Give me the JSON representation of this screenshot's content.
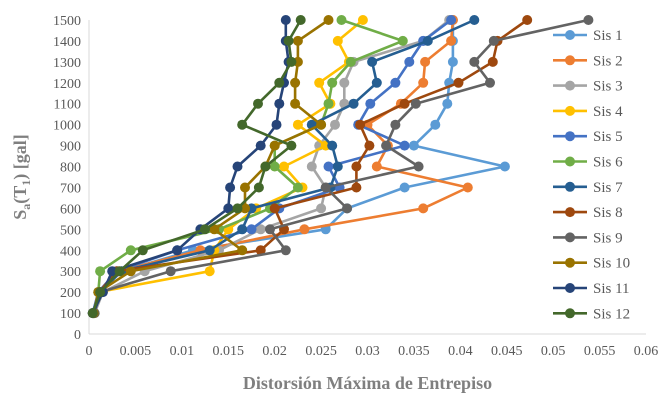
{
  "chart_data": {
    "type": "line",
    "xlabel": "Distorsión Máxima de Entrepiso",
    "ylabel_main": "S",
    "ylabel_sub1": "a",
    "ylabel_paren_open": "(T",
    "ylabel_sub2": "1",
    "ylabel_rest": ") [gal]",
    "xlim": [
      0,
      0.06
    ],
    "ylim": [
      0,
      1500
    ],
    "xticks": [
      "0",
      "0.005",
      "0.01",
      "0.015",
      "0.02",
      "0.025",
      "0.03",
      "0.035",
      "0.04",
      "0.045",
      "0.05",
      "0.055",
      "0.06"
    ],
    "yticks": [
      "0",
      "100",
      "200",
      "300",
      "400",
      "500",
      "600",
      "700",
      "800",
      "900",
      "1000",
      "1100",
      "1200",
      "1300",
      "1400",
      "1500"
    ],
    "legend_position": "right",
    "grid": false,
    "y": [
      100,
      200,
      300,
      400,
      500,
      600,
      700,
      800,
      900,
      1000,
      1100,
      1200,
      1300,
      1400,
      1500
    ],
    "series": [
      {
        "name": "Sis 1",
        "color": "#5b9bd5",
        "x": [
          0.0005,
          0.0012,
          0.0035,
          0.0112,
          0.0255,
          0.0278,
          0.034,
          0.0448,
          0.035,
          0.0373,
          0.0386,
          0.0388,
          0.0392,
          0.0392,
          0.0392
        ]
      },
      {
        "name": "Sis 2",
        "color": "#ed7d31",
        "x": [
          0.0004,
          0.0011,
          0.0032,
          0.012,
          0.0232,
          0.036,
          0.0408,
          0.031,
          0.0322,
          0.03,
          0.0336,
          0.036,
          0.0362,
          0.039,
          0.0392
        ]
      },
      {
        "name": "Sis 3",
        "color": "#a5a5a5",
        "x": [
          0.0006,
          0.0015,
          0.006,
          0.014,
          0.0185,
          0.025,
          0.0255,
          0.024,
          0.0248,
          0.0265,
          0.0275,
          0.0275,
          0.0285,
          0.036,
          0.0388
        ]
      },
      {
        "name": "Sis 4",
        "color": "#ffc000",
        "x": [
          0.0005,
          0.001,
          0.013,
          0.0135,
          0.015,
          0.018,
          0.023,
          0.021,
          0.0255,
          0.0225,
          0.026,
          0.0248,
          0.028,
          0.0268,
          0.0295
        ]
      },
      {
        "name": "Sis 5",
        "color": "#4472c4",
        "x": [
          0.0004,
          0.001,
          0.003,
          0.0095,
          0.0175,
          0.0205,
          0.027,
          0.0258,
          0.034,
          0.029,
          0.0303,
          0.033,
          0.0345,
          0.036,
          0.039
        ]
      },
      {
        "name": "Sis 6",
        "color": "#70ad47",
        "x": [
          0.0006,
          0.001,
          0.0012,
          0.0045,
          0.014,
          0.0195,
          0.0225,
          0.02,
          0.02,
          0.025,
          0.0258,
          0.0262,
          0.0282,
          0.0338,
          0.0272
        ]
      },
      {
        "name": "Sis 7",
        "color": "#255e91",
        "x": [
          0.0005,
          0.0012,
          0.0035,
          0.013,
          0.0165,
          0.0175,
          0.026,
          0.0268,
          0.0262,
          0.024,
          0.0285,
          0.031,
          0.0305,
          0.0365,
          0.0415
        ]
      },
      {
        "name": "Sis 8",
        "color": "#9e480e",
        "x": [
          0.0005,
          0.0011,
          0.003,
          0.0185,
          0.021,
          0.02,
          0.0288,
          0.0288,
          0.0302,
          0.0292,
          0.034,
          0.0398,
          0.0435,
          0.044,
          0.0472
        ]
      },
      {
        "name": "Sis 9",
        "color": "#636363",
        "x": [
          0.0006,
          0.0012,
          0.0088,
          0.0212,
          0.0195,
          0.0278,
          0.0255,
          0.0355,
          0.032,
          0.033,
          0.0352,
          0.0432,
          0.0415,
          0.0436,
          0.0538
        ]
      },
      {
        "name": "Sis 10",
        "color": "#997300",
        "x": [
          0.0005,
          0.001,
          0.0045,
          0.0165,
          0.0135,
          0.0168,
          0.0168,
          0.019,
          0.02,
          0.025,
          0.0222,
          0.0222,
          0.0225,
          0.0225,
          0.0258
        ]
      },
      {
        "name": "Sis 11",
        "color": "#264478",
        "x": [
          0.0004,
          0.0015,
          0.0025,
          0.0095,
          0.012,
          0.015,
          0.0152,
          0.016,
          0.0185,
          0.0202,
          0.0205,
          0.021,
          0.0215,
          0.0212,
          0.0212
        ]
      },
      {
        "name": "Sis 12",
        "color": "#43682b",
        "x": [
          0.0004,
          0.0012,
          0.0033,
          0.0058,
          0.0125,
          0.016,
          0.0183,
          0.019,
          0.0218,
          0.0165,
          0.0182,
          0.0205,
          0.0218,
          0.0215,
          0.0228
        ]
      }
    ]
  }
}
